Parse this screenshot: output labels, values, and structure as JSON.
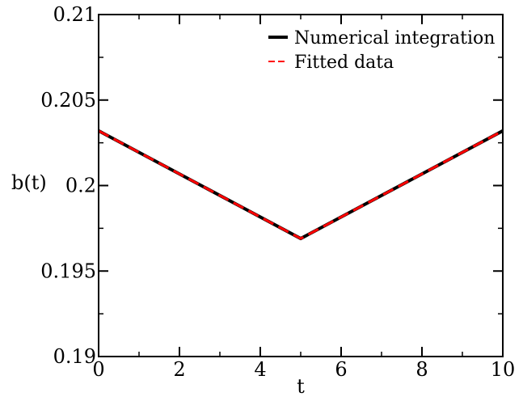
{
  "chart_data": {
    "type": "line",
    "title": "",
    "xlabel": "t",
    "ylabel": "b(t)",
    "xlim": [
      0,
      10
    ],
    "ylim": [
      0.19,
      0.21
    ],
    "xticks": [
      0,
      2,
      4,
      6,
      8,
      10
    ],
    "xtick_labels": [
      "0",
      "2",
      "4",
      "6",
      "8",
      "10"
    ],
    "yticks": [
      0.19,
      0.195,
      0.2,
      0.205,
      0.21
    ],
    "ytick_labels": [
      "0.19",
      "0.195",
      "0.2",
      "0.205",
      "0.21"
    ],
    "x_minor_step": 1,
    "y_minor_step": 0.0025,
    "grid": false,
    "legend_position": "top-right",
    "series": [
      {
        "name": "Numerical integration",
        "color": "#000000",
        "style": "solid",
        "x": [
          0,
          5,
          10
        ],
        "y": [
          0.2032,
          0.1969,
          0.2032
        ]
      },
      {
        "name": "Fitted data",
        "color": "#ff0000",
        "style": "dashed",
        "x": [
          0,
          5,
          10
        ],
        "y": [
          0.2032,
          0.1969,
          0.2032
        ]
      }
    ]
  }
}
